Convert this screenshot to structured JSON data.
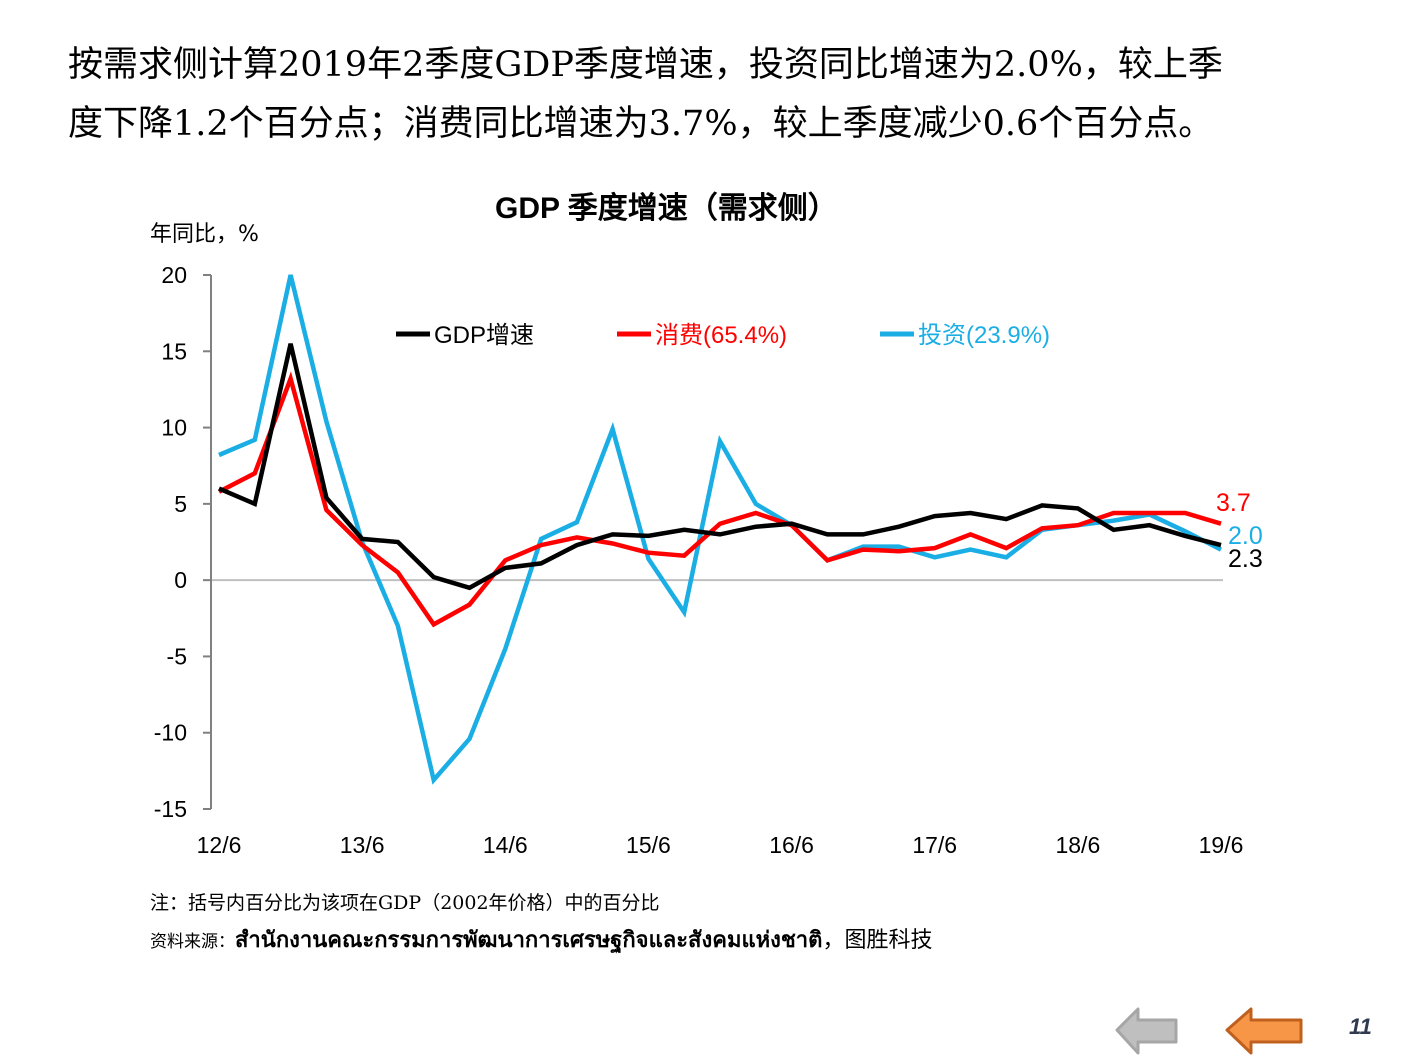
{
  "intro": {
    "line1": "按需求侧计算2019年2季度GDP季度增速，投资同比增速为2.0%，较上季",
    "line2": "度下降1.2个百分点；消费同比增速为3.7%，较上季度减少0.6个百分点。"
  },
  "chart_data": {
    "type": "line",
    "title": "GDP 季度增速（需求侧）",
    "ylabel": "年同比，%",
    "xlabel": "",
    "ylim": [
      -15,
      20
    ],
    "yticks": [
      20,
      15,
      10,
      5,
      0,
      -5,
      -10,
      -15
    ],
    "ytick_labels": [
      "20",
      "15",
      "10",
      "5",
      "0",
      "-5",
      "-10",
      "-15"
    ],
    "xtick_labels": [
      "12/6",
      "13/6",
      "14/6",
      "15/6",
      "16/6",
      "17/6",
      "18/6",
      "19/6"
    ],
    "xtick_index": [
      0,
      4,
      8,
      12,
      16,
      20,
      24,
      28
    ],
    "grid": false,
    "legend_position": "top",
    "series": [
      {
        "name": "GDP增速",
        "color": "#000000",
        "end_label": "2.3",
        "values": [
          6.0,
          5.0,
          15.5,
          5.4,
          2.7,
          2.5,
          0.2,
          -0.5,
          0.8,
          1.1,
          2.3,
          3.0,
          2.9,
          3.3,
          3.0,
          3.5,
          3.7,
          3.0,
          3.0,
          3.5,
          4.2,
          4.4,
          4.0,
          4.9,
          4.7,
          3.3,
          3.6,
          2.9,
          2.3
        ]
      },
      {
        "name": "消费(65.4%)",
        "color": "#ff0000",
        "end_label": "3.7",
        "values": [
          5.8,
          7.0,
          13.2,
          4.6,
          2.3,
          0.5,
          -2.9,
          -1.6,
          1.3,
          2.3,
          2.8,
          2.4,
          1.8,
          1.6,
          3.7,
          4.4,
          3.6,
          1.3,
          2.0,
          1.9,
          2.1,
          3.0,
          2.1,
          3.4,
          3.6,
          4.4,
          4.4,
          4.4,
          3.7
        ]
      },
      {
        "name": "投资(23.9%)",
        "color": "#1aaee5",
        "end_label": "2.0",
        "values": [
          8.2,
          9.2,
          20.0,
          10.4,
          2.5,
          -3.0,
          -13.1,
          -10.4,
          -4.5,
          2.7,
          3.8,
          9.9,
          1.4,
          -2.1,
          9.1,
          5.0,
          3.6,
          1.3,
          2.2,
          2.2,
          1.5,
          2.0,
          1.5,
          3.3,
          3.6,
          3.9,
          4.3,
          3.2,
          2.0
        ]
      }
    ]
  },
  "footer": {
    "note": "注：括号内百分比为该项在GDP（2002年价格）中的百分比",
    "source_label": "资料来源：",
    "source_thai": "สำนักงานคณะกรรมการพัฒนาการเศรษฐกิจและสังคมแห่งชาติ",
    "source_tail": "，图胜科技"
  },
  "nav": {
    "prev_color": "#bfbfbf",
    "next_color": "#f79646",
    "page_number": "11"
  }
}
